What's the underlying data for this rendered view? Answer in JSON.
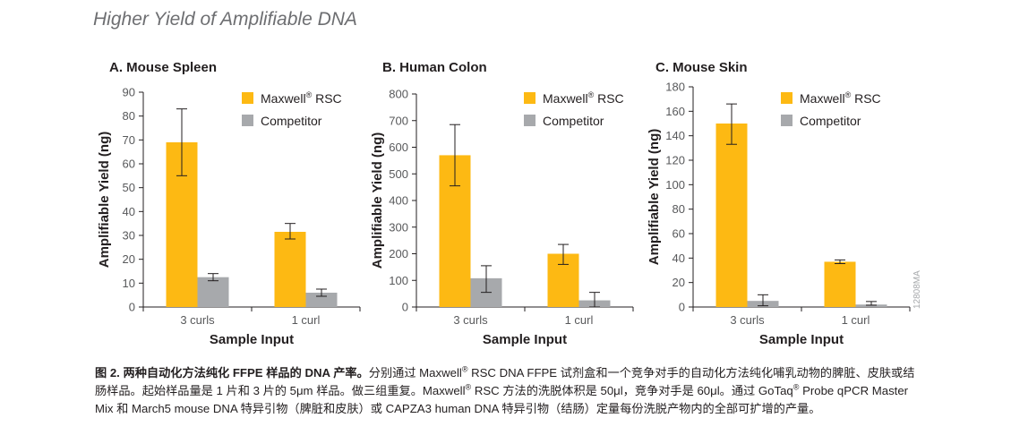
{
  "header": {
    "title": "Higher Yield of Amplifiable DNA"
  },
  "colors": {
    "maxwell": "#fdb913",
    "competitor": "#a7a9ac",
    "axis": "#231f20",
    "error_bar": "#231f20"
  },
  "figure_code": "12808MA",
  "caption": {
    "label": "图 2. 两种自动化方法纯化 FFPE 样品的 DNA 产率。",
    "part1": "分别通过 Maxwell",
    "sup1": "®",
    "part2": " RSC DNA FFPE 试剂盒和一个竞争对手的自动化方法纯化哺乳动物的脾脏、皮肤或结肠样品。起始样品量是 1 片和 3 片的 5μm 样品。做三组重复。Maxwell",
    "sup2": "®",
    "part3": " RSC 方法的洗脱体积是 50μl，竞争对手是 60μl。通过 GoTaq",
    "sup3": "®",
    "part4": " Probe qPCR Master Mix 和 March5 mouse DNA 特异引物（脾脏和皮肤）或 CAPZA3 human DNA 特异引物（结肠）定量每份洗脱产物内的全部可扩增的产量。"
  },
  "chart_data": [
    {
      "type": "bar",
      "title": "A. Mouse Spleen",
      "xlabel": "Sample Input",
      "ylabel": "Amplifiable Yield (ng)",
      "categories": [
        "3 curls",
        "1 curl"
      ],
      "ylim": [
        0,
        90
      ],
      "yticks": [
        0,
        10,
        20,
        30,
        40,
        50,
        60,
        70,
        80,
        90
      ],
      "legend_position": "top-right",
      "series": [
        {
          "name": "Maxwell",
          "name_sup": "®",
          "name_suffix": " RSC",
          "values": [
            69,
            31.5
          ],
          "err_low": [
            55,
            28.5
          ],
          "err_high": [
            83,
            35
          ]
        },
        {
          "name": "Competitor",
          "name_sup": "",
          "name_suffix": "",
          "values": [
            12.5,
            6
          ],
          "err_low": [
            11,
            4.5
          ],
          "err_high": [
            14,
            7.5
          ]
        }
      ]
    },
    {
      "type": "bar",
      "title": "B. Human Colon",
      "xlabel": "Sample Input",
      "ylabel": "Amplifiable Yield (ng)",
      "categories": [
        "3 curls",
        "1 curl"
      ],
      "ylim": [
        0,
        800
      ],
      "yticks": [
        0,
        100,
        200,
        300,
        400,
        500,
        600,
        700,
        800
      ],
      "legend_position": "top-right",
      "series": [
        {
          "name": "Maxwell",
          "name_sup": "®",
          "name_suffix": " RSC",
          "values": [
            570,
            200
          ],
          "err_low": [
            455,
            160
          ],
          "err_high": [
            685,
            235
          ]
        },
        {
          "name": "Competitor",
          "name_sup": "",
          "name_suffix": "",
          "values": [
            108,
            25
          ],
          "err_low": [
            55,
            0
          ],
          "err_high": [
            155,
            55
          ]
        }
      ]
    },
    {
      "type": "bar",
      "title": "C. Mouse Skin",
      "xlabel": "Sample Input",
      "ylabel": "Amplifiable Yield (ng)",
      "categories": [
        "3 curls",
        "1 curl"
      ],
      "ylim": [
        0,
        180
      ],
      "yticks": [
        0,
        20,
        40,
        60,
        80,
        100,
        120,
        140,
        160,
        180
      ],
      "legend_position": "top-right",
      "series": [
        {
          "name": "Maxwell",
          "name_sup": "®",
          "name_suffix": " RSC",
          "values": [
            150,
            37
          ],
          "err_low": [
            133,
            35.5
          ],
          "err_high": [
            166,
            38.5
          ]
        },
        {
          "name": "Competitor",
          "name_sup": "",
          "name_suffix": "",
          "values": [
            5,
            2
          ],
          "err_low": [
            1,
            1.5
          ],
          "err_high": [
            10,
            4.5
          ]
        }
      ]
    }
  ]
}
